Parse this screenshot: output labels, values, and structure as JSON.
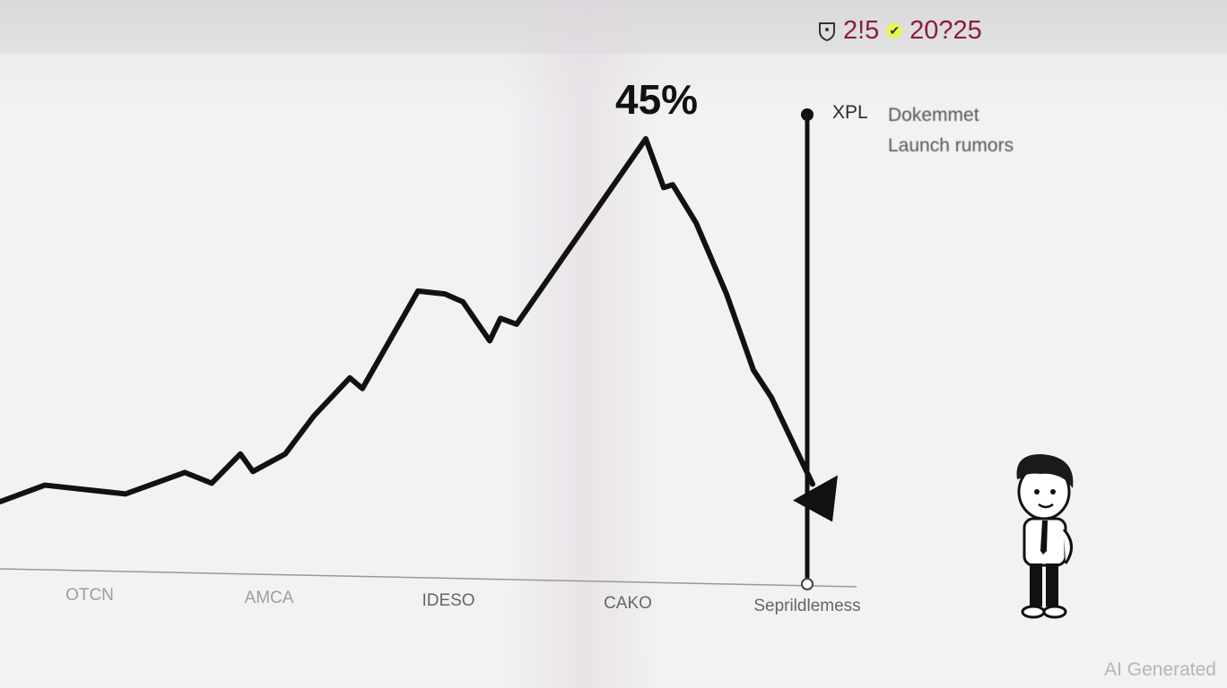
{
  "header": {
    "date_left": "2!5",
    "date_right": "20?25",
    "icons": [
      "shield-pin-icon",
      "check-icon"
    ]
  },
  "annotation": {
    "ticker": "XPL",
    "line1": "Dokemmet",
    "line2": "Launch rumors"
  },
  "watermark": "AI Generated",
  "colors": {
    "line": "#111111",
    "header_text": "#8a1f35",
    "check_highlight": "#e8f55a"
  },
  "chart_data": {
    "type": "line",
    "title": "",
    "xlabel": "",
    "ylabel": "",
    "categories": [
      "OTCN",
      "AMCA",
      "IDESO",
      "CAKO",
      "Seprildlemess"
    ],
    "x_tick_labels": [
      "OTCN",
      "AMCA",
      "IDESO",
      "CAKO",
      "Seprildlemess"
    ],
    "grid": false,
    "y_axis_shown": false,
    "ylim": [
      0,
      50
    ],
    "peak_label": "45%",
    "series": [
      {
        "x": [
          -0.5,
          -0.25,
          0.2,
          0.53,
          0.68,
          0.84,
          0.91,
          1.09,
          1.25,
          1.45,
          1.52,
          1.83,
          1.98,
          2.08,
          2.23,
          2.29,
          2.38,
          3.1,
          3.2,
          3.25,
          3.38,
          3.55,
          3.7,
          3.8,
          4.03
        ],
        "y": [
          7.8,
          9.5,
          8.6,
          10.8,
          9.7,
          12.7,
          10.9,
          12.7,
          16.6,
          20.5,
          19.4,
          29.4,
          29.1,
          28.3,
          24.3,
          26.6,
          26.0,
          45,
          40,
          40.3,
          36.4,
          29.1,
          21.3,
          18.5,
          9.6
        ]
      }
    ],
    "marker_line": {
      "x": 4.0,
      "label": "XPL Dokemmet Launch rumors"
    }
  }
}
